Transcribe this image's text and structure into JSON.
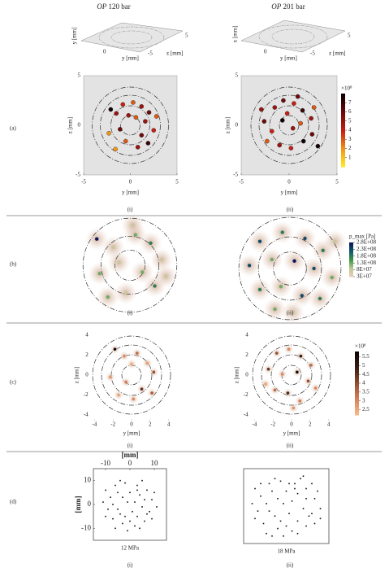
{
  "figure": {
    "columns": [
      {
        "op": "OP",
        "value": "120 bar"
      },
      {
        "op": "OP",
        "value": "201 bar"
      }
    ],
    "sublabels": [
      "(i)",
      "(ii)"
    ],
    "iso": {
      "labels": [
        "y [mm]",
        "z [mm]",
        "x [mm]"
      ],
      "ticks": [
        "5",
        "0",
        "-5"
      ]
    },
    "a": {
      "label": "(a)",
      "xlabel": "y [mm]",
      "ylabel": "z [mm]",
      "lim": [
        -5,
        5
      ],
      "ticks": [
        -5,
        0,
        5
      ],
      "cbar": {
        "lim": [
          0,
          8
        ],
        "ticks": [
          1,
          2,
          3,
          4,
          5,
          6,
          7
        ],
        "exp": "×10⁸"
      },
      "plots": [
        [
          [
            -2.1,
            1.6,
            7.8
          ],
          [
            -1.5,
            1.2,
            5
          ],
          [
            -0.8,
            2.1,
            4
          ],
          [
            0.3,
            2.3,
            3
          ],
          [
            1.2,
            1.9,
            5
          ],
          [
            2.0,
            1.3,
            6
          ],
          [
            -2.3,
            -0.8,
            2
          ],
          [
            -1.1,
            -0.4,
            6
          ],
          [
            0.6,
            0.8,
            3
          ],
          [
            1.6,
            0.4,
            5
          ],
          [
            2.5,
            -0.5,
            4
          ],
          [
            1.2,
            -1.0,
            6
          ],
          [
            -0.5,
            -1.6,
            3
          ],
          [
            0.8,
            -2.2,
            5
          ],
          [
            -1.6,
            -2.4,
            2
          ],
          [
            1.9,
            -1.8,
            7
          ],
          [
            2.8,
            0.9,
            3
          ],
          [
            -0.2,
            1.0,
            5
          ]
        ],
        [
          [
            -1.5,
            1.8,
            5
          ],
          [
            -0.6,
            2.5,
            6
          ],
          [
            0.5,
            2.2,
            4
          ],
          [
            1.4,
            1.5,
            7
          ],
          [
            2.3,
            0.7,
            5
          ],
          [
            -2.6,
            0.4,
            6
          ],
          [
            -1.8,
            -0.6,
            4
          ],
          [
            -0.7,
            0.5,
            7.8
          ],
          [
            0.4,
            -0.3,
            5
          ],
          [
            1.2,
            0.2,
            3
          ],
          [
            2.4,
            -0.9,
            6
          ],
          [
            1.5,
            -1.6,
            7.8
          ],
          [
            0.2,
            -2.3,
            4
          ],
          [
            -1.0,
            -2.0,
            5
          ],
          [
            -2.3,
            -1.6,
            3
          ],
          [
            3.0,
            -2.1,
            7.8
          ],
          [
            -2.9,
            1.6,
            5
          ],
          [
            0.9,
            2.9,
            6
          ],
          [
            -0.2,
            1.2,
            4
          ],
          [
            2.6,
            1.8,
            3
          ]
        ]
      ]
    },
    "b": {
      "label": "(b)",
      "cbar": {
        "title": "p_max [Pa]",
        "lim": [
          30000000,
          280000000
        ],
        "ticks": [
          {
            "value": 280000000,
            "label": "2.8E+08"
          },
          {
            "value": 230000000,
            "label": "2.3E+08"
          },
          {
            "value": 180000000,
            "label": "1.8E+08"
          },
          {
            "value": 130000000,
            "label": "1.3E+08"
          },
          {
            "value": 80000000,
            "label": "8E+07"
          },
          {
            "value": 30000000,
            "label": "3E+07"
          }
        ]
      },
      "plots": [
        [
          [
            -2.4,
            1.9,
            280000000
          ],
          [
            -1.2,
            1.3,
            80000000
          ],
          [
            0.4,
            2.2,
            130000000
          ],
          [
            1.5,
            1.6,
            180000000
          ],
          [
            2.3,
            0.4,
            80000000
          ],
          [
            -2.2,
            -0.6,
            130000000
          ],
          [
            -0.8,
            0.2,
            80000000
          ],
          [
            0.9,
            -0.5,
            130000000
          ],
          [
            1.8,
            -1.5,
            180000000
          ],
          [
            -0.3,
            -2.0,
            80000000
          ],
          [
            -1.6,
            -2.3,
            130000000
          ],
          [
            2.6,
            -0.8,
            80000000
          ],
          [
            0.2,
            2.9,
            80000000
          ]
        ],
        [
          [
            -2.0,
            1.8,
            230000000
          ],
          [
            -0.5,
            2.4,
            180000000
          ],
          [
            1.0,
            2.0,
            230000000
          ],
          [
            2.2,
            1.2,
            180000000
          ],
          [
            -2.7,
            0.2,
            230000000
          ],
          [
            -1.2,
            0.6,
            130000000
          ],
          [
            0.3,
            0.5,
            280000000
          ],
          [
            1.6,
            0.0,
            230000000
          ],
          [
            2.8,
            -0.6,
            130000000
          ],
          [
            -2.0,
            -1.4,
            180000000
          ],
          [
            -0.6,
            -1.2,
            130000000
          ],
          [
            0.8,
            -1.8,
            230000000
          ],
          [
            2.0,
            -2.0,
            180000000
          ],
          [
            -1.0,
            -2.7,
            130000000
          ],
          [
            0.2,
            -2.9,
            80000000
          ],
          [
            3.0,
            1.8,
            80000000
          ]
        ]
      ]
    },
    "c": {
      "label": "(c)",
      "xlabel": "y [mm]",
      "ylabel": "z [mm]",
      "lim": [
        -4.5,
        4.5
      ],
      "ticks": [
        -4,
        -2,
        0,
        2,
        4
      ],
      "cbar": {
        "lim": [
          2.2,
          5.8
        ],
        "ticks": [
          5.5,
          5,
          4.5,
          4,
          3.5,
          3,
          2.5
        ],
        "exp": "×10⁸"
      },
      "plots": [
        [
          [
            -1.8,
            2.6,
            5.6
          ],
          [
            -0.8,
            1.9,
            3
          ],
          [
            0.6,
            2.2,
            3.5
          ],
          [
            1.7,
            1.2,
            2.7
          ],
          [
            2.4,
            0.3,
            4
          ],
          [
            -2.3,
            -0.2,
            2.8
          ],
          [
            -0.6,
            -0.7,
            3.2
          ],
          [
            1.1,
            -1.4,
            4.5
          ],
          [
            0.2,
            -2.4,
            3
          ],
          [
            -1.4,
            -2.0,
            2.6
          ],
          [
            2.2,
            -1.8,
            3.8
          ],
          [
            0.0,
            1.1,
            2.5
          ]
        ],
        [
          [
            -1.6,
            2.2,
            4
          ],
          [
            -0.3,
            2.6,
            3
          ],
          [
            1.0,
            1.9,
            5
          ],
          [
            2.1,
            1.0,
            3.5
          ],
          [
            -2.5,
            0.6,
            4.5
          ],
          [
            -1.0,
            0.1,
            3
          ],
          [
            0.6,
            0.3,
            5.5
          ],
          [
            1.8,
            -0.6,
            4
          ],
          [
            2.6,
            -1.3,
            3
          ],
          [
            -1.8,
            -1.5,
            3.5
          ],
          [
            -0.4,
            -1.8,
            4.8
          ],
          [
            0.9,
            -2.6,
            3.2
          ],
          [
            0.2,
            -3.3,
            2.8
          ],
          [
            -2.8,
            -0.9,
            2.6
          ]
        ]
      ]
    },
    "d": {
      "label": "(d)",
      "axis": "[mm]",
      "lim": [
        -15,
        15
      ],
      "ticks": [
        -10,
        0,
        10
      ],
      "captions": [
        "12 MPa",
        "18 MPa"
      ],
      "plots": [
        [
          [
            -6,
            8
          ],
          [
            -2,
            9
          ],
          [
            3,
            8
          ],
          [
            7,
            6
          ],
          [
            9,
            2
          ],
          [
            8,
            -3
          ],
          [
            6,
            -7
          ],
          [
            2,
            -9
          ],
          [
            -3,
            -8
          ],
          [
            -7,
            -6
          ],
          [
            -9,
            -2
          ],
          [
            -8,
            3
          ],
          [
            -5,
            5
          ],
          [
            0,
            5
          ],
          [
            4,
            4
          ],
          [
            5,
            -1
          ],
          [
            3,
            -5
          ],
          [
            -2,
            -5
          ],
          [
            -5,
            -2
          ],
          [
            -1,
            1
          ],
          [
            2,
            1
          ],
          [
            -4,
            10
          ],
          [
            5,
            10
          ],
          [
            10,
            5
          ],
          [
            11,
            -1
          ],
          [
            9,
            -6
          ],
          [
            4,
            -10
          ],
          [
            -1,
            -11
          ],
          [
            -6,
            -10
          ],
          [
            -10,
            -5
          ],
          [
            -11,
            1
          ],
          [
            -10,
            6
          ],
          [
            -3,
            3
          ],
          [
            1,
            -3
          ],
          [
            6,
            2
          ],
          [
            -7,
            0
          ],
          [
            0,
            -7
          ],
          [
            7,
            -4
          ],
          [
            -4,
            -4
          ],
          [
            3,
            6
          ]
        ],
        [
          [
            -6,
            9
          ],
          [
            -2,
            10
          ],
          [
            3,
            9
          ],
          [
            7,
            7
          ],
          [
            10,
            3
          ],
          [
            9,
            -3
          ],
          [
            7,
            -8
          ],
          [
            2,
            -10
          ],
          [
            -3,
            -9
          ],
          [
            -8,
            -7
          ],
          [
            -10,
            -2
          ],
          [
            -9,
            4
          ],
          [
            -5,
            6
          ],
          [
            0,
            6
          ],
          [
            4,
            5
          ],
          [
            6,
            -1
          ],
          [
            4,
            -6
          ],
          [
            -2,
            -6
          ],
          [
            -6,
            -2
          ],
          [
            -1,
            1
          ],
          [
            2,
            2
          ],
          [
            -4,
            11
          ],
          [
            5,
            11
          ],
          [
            11,
            6
          ],
          [
            12,
            -1
          ],
          [
            10,
            -7
          ],
          [
            4,
            -11
          ],
          [
            -1,
            -12
          ],
          [
            -7,
            -11
          ],
          [
            -11,
            -5
          ],
          [
            -12,
            1
          ],
          [
            -11,
            7
          ],
          [
            -3,
            3
          ],
          [
            1,
            -3
          ],
          [
            7,
            3
          ],
          [
            -7,
            1
          ],
          [
            0,
            -8
          ],
          [
            8,
            -4
          ],
          [
            -4,
            -4
          ],
          [
            3,
            7
          ],
          [
            1,
            9
          ],
          [
            -9,
            9
          ],
          [
            9,
            9
          ],
          [
            6,
            12
          ],
          [
            -5,
            -12
          ],
          [
            12,
            -5
          ]
        ]
      ]
    }
  }
}
